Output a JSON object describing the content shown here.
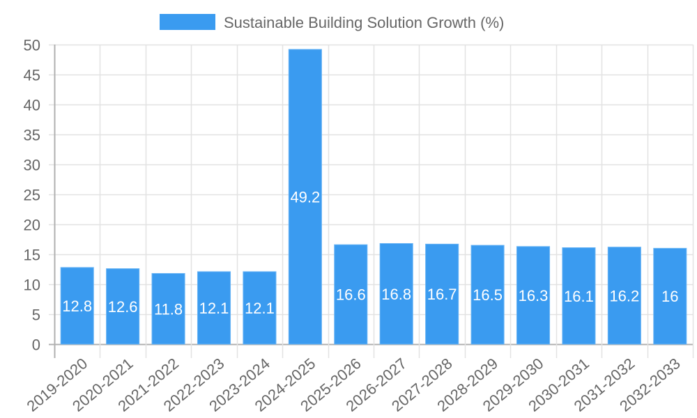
{
  "chart_data": {
    "type": "bar",
    "title": "",
    "legend": {
      "position": "top",
      "entries": [
        {
          "label": "Sustainable Building Solution Growth (%)",
          "color": "#3a9bf0"
        }
      ]
    },
    "categories": [
      "2019-2020",
      "2020-2021",
      "2021-2022",
      "2022-2023",
      "2023-2024",
      "2024-2025",
      "2025-2026",
      "2026-2027",
      "2027-2028",
      "2028-2029",
      "2029-2030",
      "2030-2031",
      "2031-2032",
      "2032-2033"
    ],
    "series": [
      {
        "name": "Sustainable Building Solution Growth (%)",
        "color": "#3a9bf0",
        "values": [
          12.8,
          12.6,
          11.8,
          12.1,
          12.1,
          49.2,
          16.6,
          16.8,
          16.7,
          16.5,
          16.3,
          16.1,
          16.2,
          16
        ]
      }
    ],
    "data_labels": [
      "12.8",
      "12.6",
      "11.8",
      "12.1",
      "12.1",
      "49.2",
      "16.6",
      "16.8",
      "16.7",
      "16.5",
      "16.3",
      "16.1",
      "16.2",
      "16"
    ],
    "xlabel": "",
    "ylabel": "",
    "ylim": [
      0,
      50
    ],
    "yticks": [
      0,
      5,
      10,
      15,
      20,
      25,
      30,
      35,
      40,
      45,
      50
    ],
    "grid": true,
    "x_tick_rotation": -45
  }
}
